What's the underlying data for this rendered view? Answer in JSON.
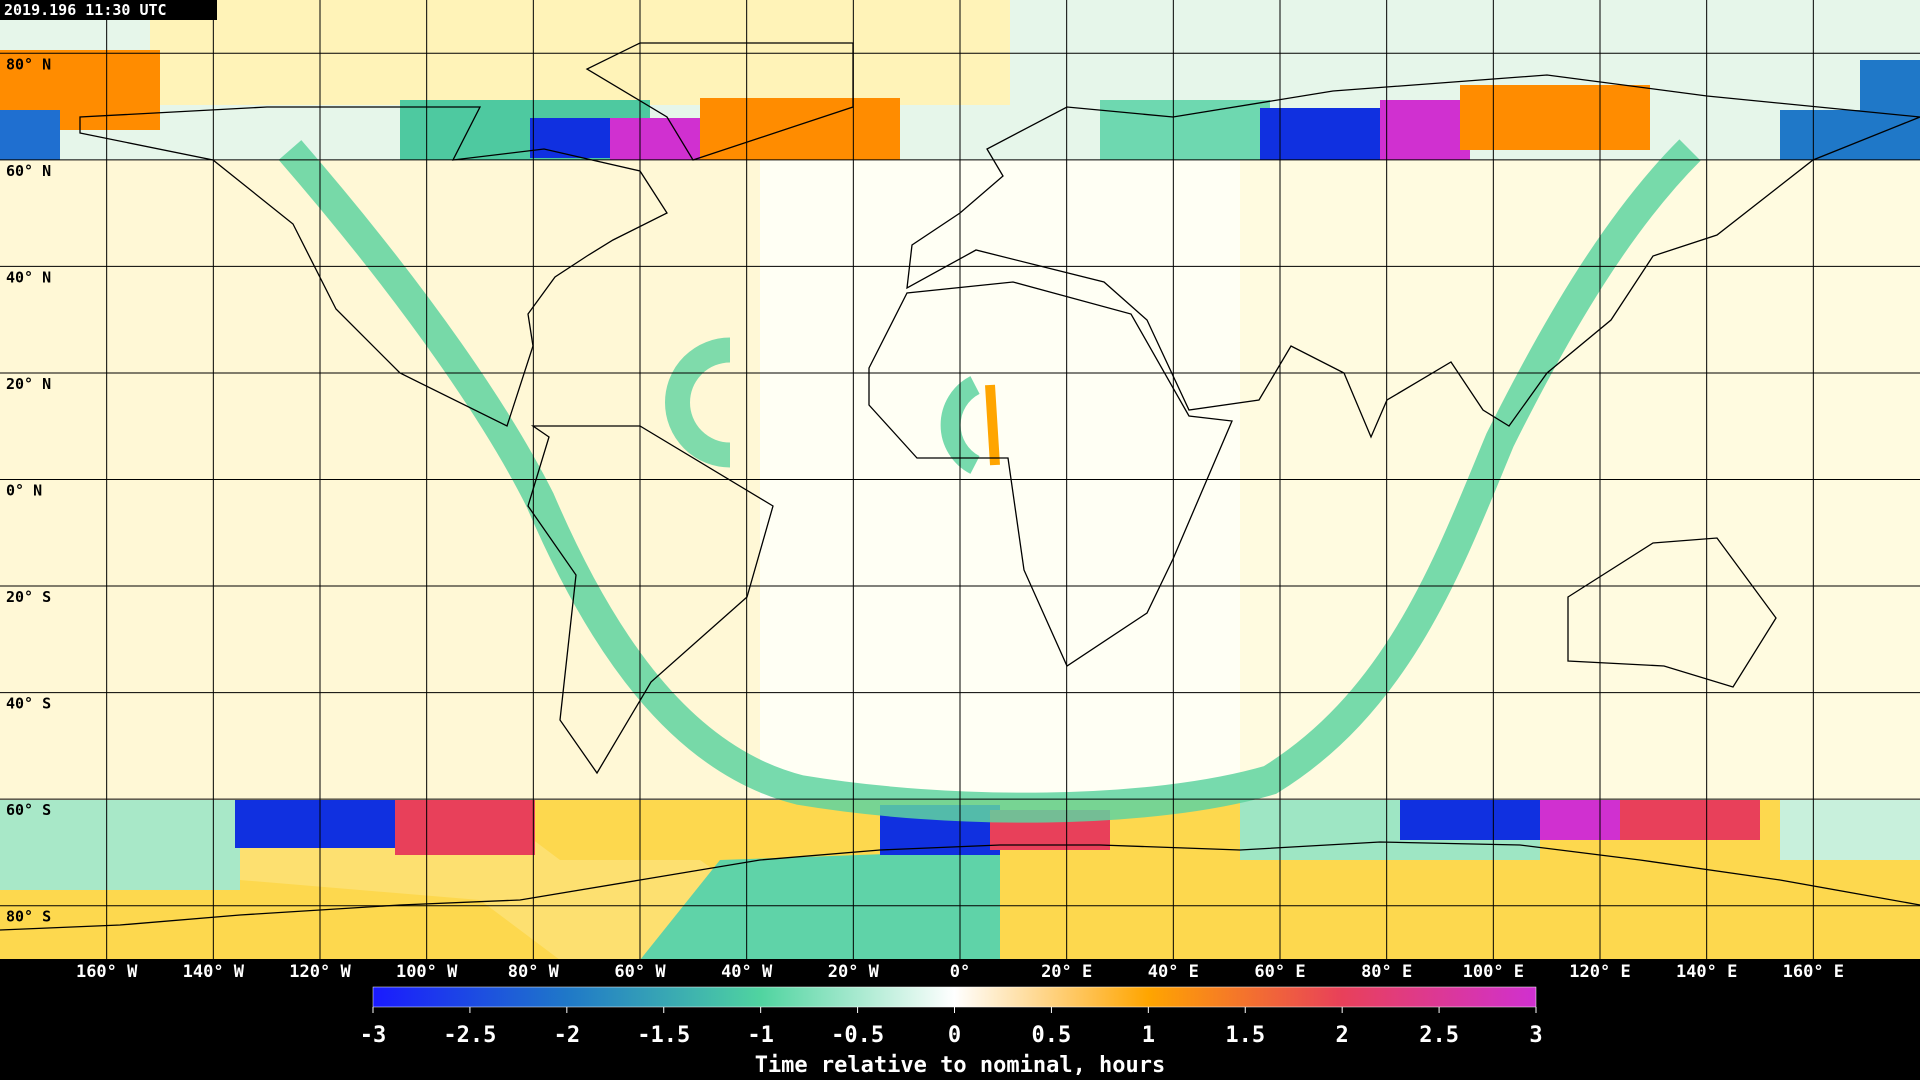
{
  "timestamp": "2019.196 11:30 UTC",
  "map": {
    "lat_labels": [
      "80° N",
      "60° N",
      "40° N",
      "20° N",
      "0° N",
      "20° S",
      "40° S",
      "60° S",
      "80° S"
    ],
    "lon_labels": [
      "160° W",
      "140° W",
      "120° W",
      "100° W",
      "80° W",
      "60° W",
      "40° W",
      "20° W",
      "0°",
      "20° E",
      "40° E",
      "60° E",
      "80° E",
      "100° E",
      "120° E",
      "140° E",
      "160° E"
    ]
  },
  "colorbar": {
    "label": "Time relative to nominal, hours",
    "lim": [
      -3,
      3
    ],
    "ticks": [
      -3,
      -2.5,
      -2,
      -1.5,
      -1,
      -0.5,
      0,
      0.5,
      1,
      1.5,
      2,
      2.5,
      3
    ],
    "colors": [
      "#1a1aff",
      "#1f78c8",
      "#50d4a0",
      "#ffffff",
      "#ffa500",
      "#e8405a",
      "#d030d0"
    ]
  }
}
